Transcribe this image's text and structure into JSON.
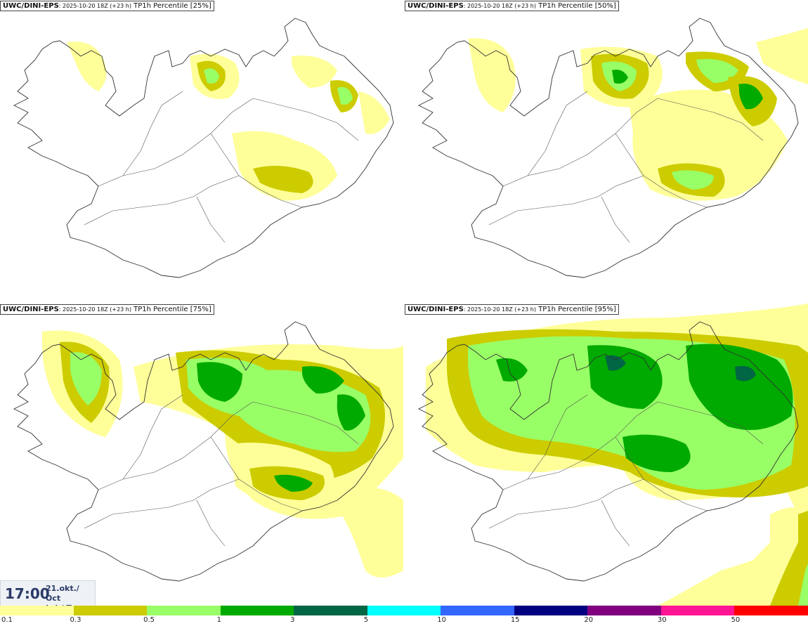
{
  "panels": [
    {
      "model": "UWC/DINI-EPS",
      "run": ": 2025-10-20 18Z (+23 h)",
      "product": " TP1h Percentile [25%]"
    },
    {
      "model": "UWC/DINI-EPS",
      "run": ": 2025-10-20 18Z (+23 h)",
      "product": " TP1h Percentile [50%]"
    },
    {
      "model": "UWC/DINI-EPS",
      "run": ": 2025-10-20 18Z (+23 h)",
      "product": " TP1h Percentile [75%]"
    },
    {
      "model": "UWC/DINI-EPS",
      "run": ": 2025-10-20 18Z (+23 h)",
      "product": " TP1h Percentile [95%]"
    }
  ],
  "valid_time": {
    "time": "17:00",
    "date_line1": "21.okt./ Oct",
    "date_line2": "Þri./ Tue"
  },
  "legend": {
    "colors": [
      "#ffff99",
      "#cccc00",
      "#99ff66",
      "#00aa00",
      "#006644",
      "#00ffff",
      "#3366ff",
      "#000080",
      "#800080",
      "#ff1493",
      "#ff0000"
    ],
    "ticks": [
      "0.1",
      "0.3",
      "0.5",
      "1",
      "3",
      "5",
      "10",
      "15",
      "20",
      "30",
      "50"
    ]
  },
  "colors": {
    "coastline": "#333333",
    "roads": "#555555"
  }
}
